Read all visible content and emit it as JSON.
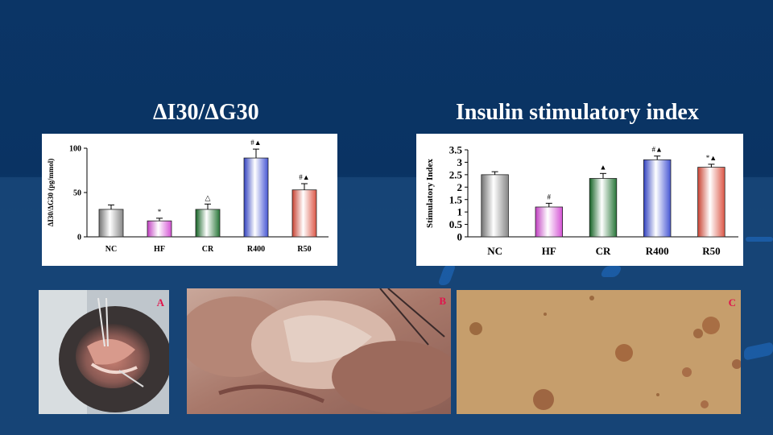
{
  "slide": {
    "background": "#0b3566",
    "accent": "#1c5ea8",
    "label_color": "#e0154c"
  },
  "titles": {
    "left": "ΔI30/ΔG30",
    "right": "Insulin stimulatory index"
  },
  "chart_data": [
    {
      "type": "bar",
      "title": "ΔI30/ΔG30",
      "ylabel": "ΔI30/ΔG30 (pg/mmol)",
      "xlabel": "",
      "categories": [
        "NC",
        "HF",
        "CR",
        "R400",
        "R50"
      ],
      "values": [
        31,
        18,
        31,
        89,
        53
      ],
      "errors": [
        5,
        3,
        6,
        10,
        7
      ],
      "annotations": [
        "",
        "*",
        "△",
        "#▲",
        "#▲"
      ],
      "ylim": [
        0,
        100
      ],
      "yticks": [
        "0",
        "50",
        "100"
      ],
      "bar_colors": [
        "#9a9a9a",
        "#e866e8",
        "#3c8a4c",
        "#5a6ae8",
        "#f06a5a"
      ],
      "grid": false
    },
    {
      "type": "bar",
      "title": "Insulin stimulatory index",
      "ylabel": "Stimulatory Index",
      "xlabel": "",
      "categories": [
        "NC",
        "HF",
        "CR",
        "R400",
        "R50"
      ],
      "values": [
        2.5,
        1.2,
        2.35,
        3.1,
        2.8
      ],
      "errors": [
        0.12,
        0.15,
        0.2,
        0.15,
        0.12
      ],
      "annotations": [
        "",
        "#",
        "▲",
        "#▲",
        "*▲"
      ],
      "ylim": [
        0,
        3.5
      ],
      "yticks": [
        "0",
        "0.5",
        "1",
        "1.5",
        "2",
        "2.5",
        "3",
        "3.5"
      ],
      "bar_colors": [
        "#9a9a9a",
        "#e866e8",
        "#3c8a4c",
        "#5a6ae8",
        "#f06a5a"
      ],
      "grid": false
    }
  ],
  "photos": [
    {
      "label": "A"
    },
    {
      "label": "B"
    },
    {
      "label": "C"
    }
  ]
}
